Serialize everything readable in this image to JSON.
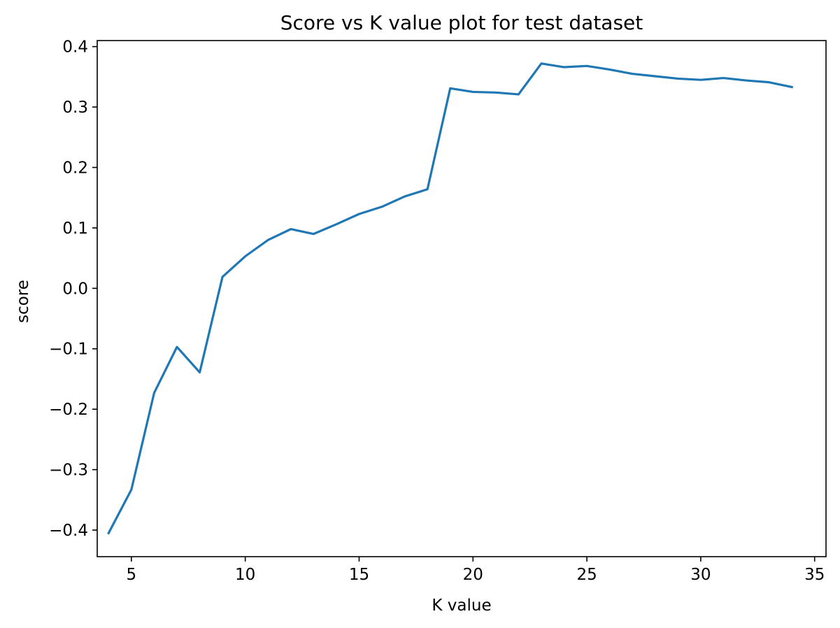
{
  "chart_data": {
    "type": "line",
    "title": "Score vs K value plot for test dataset",
    "xlabel": "K value",
    "ylabel": "score",
    "xlim": [
      3.5,
      35.5
    ],
    "ylim": [
      -0.444,
      0.41
    ],
    "xticks": [
      5,
      10,
      15,
      20,
      25,
      30,
      35
    ],
    "yticks": [
      -0.4,
      -0.3,
      -0.2,
      -0.1,
      0.0,
      0.1,
      0.2,
      0.3,
      0.4
    ],
    "ytick_labels": [
      "−0.4",
      "−0.3",
      "−0.2",
      "−0.1",
      "0.0",
      "0.1",
      "0.2",
      "0.3",
      "0.4"
    ],
    "grid": false,
    "line_color": "#1f77b4",
    "series": [
      {
        "x": [
          4,
          5,
          6,
          7,
          8,
          9,
          10,
          11,
          12,
          13,
          14,
          15,
          16,
          17,
          18,
          19,
          20,
          21,
          22,
          23,
          24,
          25,
          26,
          27,
          28,
          29,
          30,
          31,
          32,
          33,
          34
        ],
        "values": [
          -0.405,
          -0.333,
          -0.173,
          -0.097,
          -0.139,
          0.019,
          0.053,
          0.08,
          0.098,
          0.09,
          0.106,
          0.123,
          0.135,
          0.152,
          0.164,
          0.331,
          0.325,
          0.324,
          0.321,
          0.372,
          0.366,
          0.368,
          0.362,
          0.355,
          0.351,
          0.347,
          0.345,
          0.348,
          0.344,
          0.341,
          0.333
        ]
      }
    ]
  }
}
